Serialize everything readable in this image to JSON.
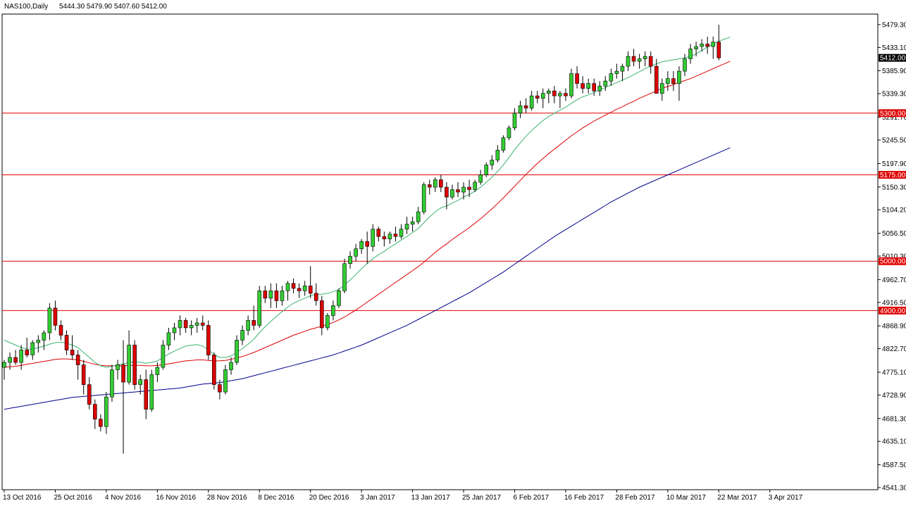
{
  "header": {
    "symbol": "NAS100,Daily",
    "ohlc": "5444.30 5479.90 5407.60 5412.00"
  },
  "colors": {
    "bull": "#32CD32",
    "bear": "#DC0000",
    "ma_green": "#3CB371",
    "ma_red": "#E00000",
    "ma_blue": "#00008B",
    "hline": "#E00000",
    "axis": "#000000"
  },
  "chart_data": {
    "type": "candlestick",
    "title": "NAS100,Daily",
    "y_ticks": [
      "5479.30",
      "5433.10",
      "5385.90",
      "5339.30",
      "5291.70",
      "5245.50",
      "5197.90",
      "5150.30",
      "5104.20",
      "5056.50",
      "5010.30",
      "4962.70",
      "4916.50",
      "4868.90",
      "4822.70",
      "4775.10",
      "4728.90",
      "4681.30",
      "4635.10",
      "4587.50",
      "4541.30"
    ],
    "ylim": [
      4541.3,
      5479.3
    ],
    "x_labels": [
      {
        "i": 0,
        "label": "13 Oct 2016"
      },
      {
        "i": 9,
        "label": "25 Oct 2016"
      },
      {
        "i": 18,
        "label": "4 Nov 2016"
      },
      {
        "i": 27,
        "label": "16 Nov 2016"
      },
      {
        "i": 36,
        "label": "28 Nov 2016"
      },
      {
        "i": 45,
        "label": "8 Dec 2016"
      },
      {
        "i": 54,
        "label": "20 Dec 2016"
      },
      {
        "i": 63,
        "label": "3 Jan 2017"
      },
      {
        "i": 72,
        "label": "13 Jan 2017"
      },
      {
        "i": 81,
        "label": "25 Jan 2017"
      },
      {
        "i": 90,
        "label": "6 Feb 2017"
      },
      {
        "i": 99,
        "label": "16 Feb 2017"
      },
      {
        "i": 108,
        "label": "28 Feb 2017"
      },
      {
        "i": 117,
        "label": "10 Mar 2017"
      },
      {
        "i": 126,
        "label": "22 Mar 2017"
      },
      {
        "i": 135,
        "label": "3 Apr 2017"
      }
    ],
    "horizontal_lines": [
      {
        "value": 5300.0,
        "label": "5300.00"
      },
      {
        "value": 5175.0,
        "label": "5175.00"
      },
      {
        "value": 5000.0,
        "label": "5000.00"
      },
      {
        "value": 4900.0,
        "label": "4900.00"
      }
    ],
    "current_price": {
      "value": 5412.0,
      "label": "5412.00"
    },
    "candles": [
      [
        4785,
        4800,
        4760,
        4795
      ],
      [
        4795,
        4815,
        4780,
        4805
      ],
      [
        4805,
        4820,
        4790,
        4795
      ],
      [
        4795,
        4830,
        4780,
        4820
      ],
      [
        4820,
        4845,
        4805,
        4810
      ],
      [
        4810,
        4840,
        4800,
        4835
      ],
      [
        4835,
        4850,
        4815,
        4840
      ],
      [
        4840,
        4860,
        4820,
        4855
      ],
      [
        4855,
        4915,
        4840,
        4905
      ],
      [
        4905,
        4920,
        4860,
        4870
      ],
      [
        4870,
        4880,
        4840,
        4850
      ],
      [
        4850,
        4860,
        4810,
        4820
      ],
      [
        4820,
        4850,
        4800,
        4810
      ],
      [
        4810,
        4820,
        4760,
        4790
      ],
      [
        4790,
        4800,
        4730,
        4750
      ],
      [
        4750,
        4765,
        4700,
        4710
      ],
      [
        4710,
        4720,
        4660,
        4680
      ],
      [
        4680,
        4690,
        4655,
        4665
      ],
      [
        4665,
        4735,
        4650,
        4725
      ],
      [
        4725,
        4790,
        4715,
        4780
      ],
      [
        4780,
        4800,
        4760,
        4790
      ],
      [
        4790,
        4840,
        4610,
        4755
      ],
      [
        4755,
        4860,
        4750,
        4830
      ],
      [
        4830,
        4840,
        4740,
        4750
      ],
      [
        4750,
        4770,
        4730,
        4760
      ],
      [
        4760,
        4780,
        4680,
        4700
      ],
      [
        4700,
        4780,
        4695,
        4770
      ],
      [
        4770,
        4795,
        4755,
        4785
      ],
      [
        4785,
        4840,
        4780,
        4830
      ],
      [
        4830,
        4865,
        4820,
        4855
      ],
      [
        4855,
        4875,
        4840,
        4865
      ],
      [
        4865,
        4890,
        4850,
        4880
      ],
      [
        4880,
        4885,
        4855,
        4865
      ],
      [
        4865,
        4880,
        4850,
        4870
      ],
      [
        4870,
        4885,
        4855,
        4875
      ],
      [
        4875,
        4890,
        4860,
        4870
      ],
      [
        4870,
        4880,
        4800,
        4810
      ],
      [
        4810,
        4815,
        4740,
        4750
      ],
      [
        4750,
        4760,
        4720,
        4735
      ],
      [
        4735,
        4790,
        4730,
        4780
      ],
      [
        4780,
        4805,
        4770,
        4795
      ],
      [
        4795,
        4850,
        4790,
        4840
      ],
      [
        4840,
        4870,
        4830,
        4860
      ],
      [
        4860,
        4890,
        4850,
        4880
      ],
      [
        4880,
        4910,
        4860,
        4870
      ],
      [
        4870,
        4950,
        4865,
        4940
      ],
      [
        4940,
        4950,
        4915,
        4925
      ],
      [
        4925,
        4955,
        4905,
        4940
      ],
      [
        4940,
        4955,
        4905,
        4920
      ],
      [
        4920,
        4950,
        4910,
        4940
      ],
      [
        4940,
        4960,
        4920,
        4955
      ],
      [
        4955,
        4965,
        4935,
        4945
      ],
      [
        4945,
        4955,
        4925,
        4940
      ],
      [
        4940,
        4960,
        4930,
        4950
      ],
      [
        4950,
        4990,
        4925,
        4935
      ],
      [
        4935,
        4955,
        4910,
        4920
      ],
      [
        4920,
        4930,
        4850,
        4865
      ],
      [
        4865,
        4895,
        4860,
        4890
      ],
      [
        4890,
        4920,
        4880,
        4910
      ],
      [
        4910,
        4945,
        4905,
        4940
      ],
      [
        4940,
        5005,
        4935,
        4995
      ],
      [
        4995,
        5020,
        4985,
        5010
      ],
      [
        5010,
        5035,
        5000,
        5025
      ],
      [
        5025,
        5045,
        5015,
        5040
      ],
      [
        5040,
        5060,
        4995,
        5030
      ],
      [
        5030,
        5075,
        5020,
        5065
      ],
      [
        5065,
        5070,
        5040,
        5050
      ],
      [
        5050,
        5060,
        5030,
        5045
      ],
      [
        5045,
        5060,
        5035,
        5055
      ],
      [
        5055,
        5070,
        5040,
        5050
      ],
      [
        5050,
        5075,
        5045,
        5065
      ],
      [
        5065,
        5090,
        5055,
        5075
      ],
      [
        5075,
        5090,
        5060,
        5080
      ],
      [
        5080,
        5110,
        5075,
        5100
      ],
      [
        5100,
        5160,
        5095,
        5155
      ],
      [
        5155,
        5165,
        5135,
        5150
      ],
      [
        5150,
        5170,
        5140,
        5165
      ],
      [
        5165,
        5175,
        5140,
        5150
      ],
      [
        5150,
        5160,
        5105,
        5130
      ],
      [
        5130,
        5155,
        5125,
        5145
      ],
      [
        5145,
        5160,
        5130,
        5140
      ],
      [
        5140,
        5160,
        5125,
        5150
      ],
      [
        5150,
        5165,
        5130,
        5145
      ],
      [
        5145,
        5165,
        5140,
        5160
      ],
      [
        5160,
        5185,
        5155,
        5175
      ],
      [
        5175,
        5200,
        5170,
        5195
      ],
      [
        5195,
        5215,
        5185,
        5205
      ],
      [
        5205,
        5235,
        5200,
        5225
      ],
      [
        5225,
        5255,
        5220,
        5250
      ],
      [
        5250,
        5275,
        5245,
        5270
      ],
      [
        5270,
        5310,
        5265,
        5300
      ],
      [
        5300,
        5325,
        5290,
        5315
      ],
      [
        5315,
        5330,
        5300,
        5310
      ],
      [
        5310,
        5345,
        5305,
        5335
      ],
      [
        5335,
        5345,
        5320,
        5330
      ],
      [
        5330,
        5350,
        5310,
        5340
      ],
      [
        5340,
        5350,
        5320,
        5345
      ],
      [
        5345,
        5355,
        5320,
        5335
      ],
      [
        5335,
        5345,
        5310,
        5340
      ],
      [
        5340,
        5350,
        5325,
        5335
      ],
      [
        5335,
        5390,
        5330,
        5380
      ],
      [
        5380,
        5395,
        5350,
        5360
      ],
      [
        5360,
        5375,
        5340,
        5350
      ],
      [
        5350,
        5370,
        5340,
        5360
      ],
      [
        5360,
        5370,
        5335,
        5345
      ],
      [
        5345,
        5365,
        5335,
        5355
      ],
      [
        5355,
        5375,
        5345,
        5365
      ],
      [
        5365,
        5390,
        5355,
        5380
      ],
      [
        5380,
        5400,
        5370,
        5385
      ],
      [
        5385,
        5400,
        5365,
        5395
      ],
      [
        5395,
        5425,
        5385,
        5415
      ],
      [
        5415,
        5430,
        5395,
        5405
      ],
      [
        5405,
        5420,
        5390,
        5410
      ],
      [
        5410,
        5425,
        5395,
        5415
      ],
      [
        5415,
        5425,
        5380,
        5395
      ],
      [
        5395,
        5410,
        5340,
        5340
      ],
      [
        5340,
        5370,
        5325,
        5360
      ],
      [
        5360,
        5385,
        5345,
        5370
      ],
      [
        5370,
        5385,
        5345,
        5360
      ],
      [
        5360,
        5395,
        5325,
        5385
      ],
      [
        5385,
        5420,
        5375,
        5410
      ],
      [
        5410,
        5440,
        5400,
        5430
      ],
      [
        5430,
        5445,
        5415,
        5435
      ],
      [
        5435,
        5450,
        5425,
        5440
      ],
      [
        5440,
        5455,
        5420,
        5435
      ],
      [
        5435,
        5455,
        5410,
        5444
      ],
      [
        5444,
        5479,
        5407,
        5412
      ]
    ],
    "ma_green": [
      4840,
      4835,
      4830,
      4825,
      4822,
      4822,
      4825,
      4828,
      4832,
      4835,
      4836,
      4834,
      4830,
      4825,
      4815,
      4805,
      4795,
      4788,
      4785,
      4787,
      4790,
      4792,
      4795,
      4796,
      4795,
      4793,
      4795,
      4798,
      4805,
      4812,
      4818,
      4823,
      4828,
      4830,
      4831,
      4828,
      4820,
      4811,
      4805,
      4805,
      4808,
      4815,
      4823,
      4832,
      4842,
      4855,
      4867,
      4878,
      4888,
      4898,
      4907,
      4915,
      4920,
      4925,
      4930,
      4933,
      4933,
      4935,
      4938,
      4943,
      4952,
      4962,
      4973,
      4985,
      4995,
      5005,
      5013,
      5020,
      5028,
      5035,
      5043,
      5050,
      5058,
      5066,
      5078,
      5090,
      5100,
      5108,
      5112,
      5118,
      5123,
      5130,
      5135,
      5142,
      5150,
      5160,
      5170,
      5182,
      5195,
      5210,
      5226,
      5240,
      5253,
      5265,
      5275,
      5285,
      5293,
      5300,
      5306,
      5312,
      5320,
      5327,
      5333,
      5337,
      5342,
      5347,
      5352,
      5357,
      5362,
      5367,
      5372,
      5378,
      5384,
      5390,
      5395,
      5400,
      5404,
      5406,
      5408,
      5410,
      5412,
      5415,
      5420,
      5427,
      5434,
      5440,
      5446,
      5450,
      5454
    ],
    "ma_red": [
      4785,
      4786,
      4787,
      4789,
      4791,
      4793,
      4795,
      4797,
      4799,
      4801,
      4802,
      4802,
      4801,
      4800,
      4797,
      4794,
      4791,
      4789,
      4788,
      4788,
      4788,
      4788,
      4789,
      4789,
      4789,
      4788,
      4788,
      4789,
      4790,
      4792,
      4794,
      4796,
      4798,
      4799,
      4800,
      4800,
      4799,
      4798,
      4798,
      4799,
      4801,
      4804,
      4807,
      4811,
      4815,
      4820,
      4825,
      4830,
      4835,
      4840,
      4845,
      4850,
      4854,
      4858,
      4862,
      4865,
      4868,
      4872,
      4876,
      4881,
      4887,
      4894,
      4901,
      4909,
      4917,
      4925,
      4933,
      4941,
      4949,
      4957,
      4965,
      4973,
      4981,
      4989,
      4998,
      5008,
      5018,
      5027,
      5035,
      5044,
      5052,
      5060,
      5068,
      5077,
      5086,
      5096,
      5106,
      5117,
      5128,
      5140,
      5152,
      5164,
      5176,
      5187,
      5198,
      5208,
      5218,
      5227,
      5236,
      5245,
      5254,
      5262,
      5270,
      5277,
      5284,
      5290,
      5296,
      5302,
      5308,
      5313,
      5319,
      5324,
      5330,
      5335,
      5340,
      5345,
      5350,
      5354,
      5358,
      5362,
      5366,
      5370,
      5375,
      5380,
      5385,
      5390,
      5395,
      5400,
      5405
    ],
    "ma_blue": [
      4700,
      4702,
      4704,
      4706,
      4708,
      4710,
      4712,
      4714,
      4716,
      4718,
      4720,
      4722,
      4724,
      4725,
      4726,
      4727,
      4728,
      4729,
      4730,
      4731,
      4732,
      4733,
      4734,
      4735,
      4736,
      4737,
      4738,
      4739,
      4740,
      4741,
      4742,
      4743,
      4745,
      4747,
      4749,
      4751,
      4752,
      4753,
      4754,
      4756,
      4758,
      4760,
      4762,
      4765,
      4768,
      4771,
      4774,
      4777,
      4780,
      4783,
      4786,
      4789,
      4792,
      4795,
      4798,
      4801,
      4804,
      4807,
      4810,
      4814,
      4818,
      4822,
      4826,
      4830,
      4835,
      4840,
      4845,
      4850,
      4855,
      4860,
      4865,
      4870,
      4876,
      4882,
      4888,
      4894,
      4900,
      4906,
      4912,
      4918,
      4924,
      4930,
      4936,
      4943,
      4950,
      4957,
      4964,
      4971,
      4978,
      4986,
      4994,
      5002,
      5010,
      5018,
      5026,
      5034,
      5042,
      5050,
      5057,
      5064,
      5071,
      5078,
      5085,
      5092,
      5099,
      5106,
      5113,
      5120,
      5126,
      5132,
      5138,
      5144,
      5150,
      5155,
      5160,
      5165,
      5170,
      5175,
      5180,
      5185,
      5190,
      5195,
      5200,
      5205,
      5210,
      5215,
      5220,
      5225,
      5230
    ]
  }
}
